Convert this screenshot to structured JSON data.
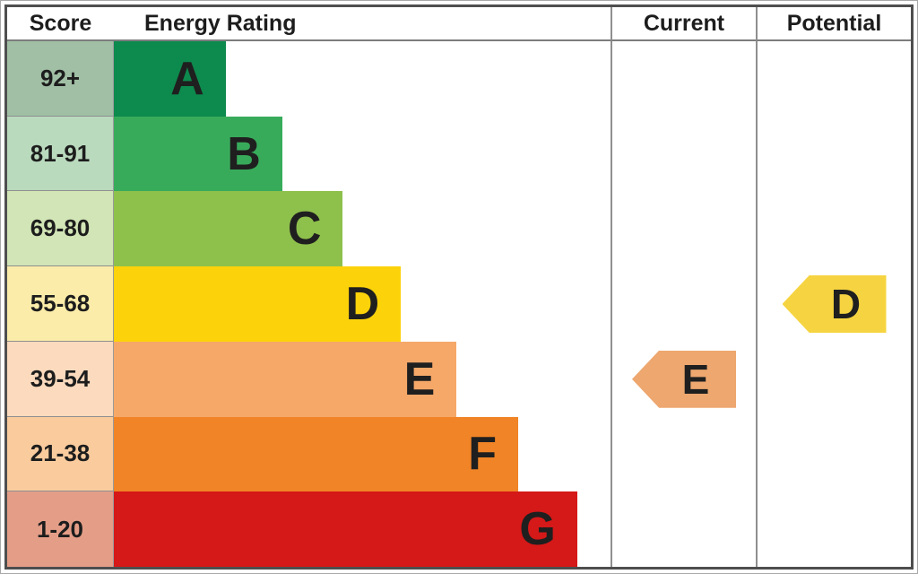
{
  "table": {
    "headers": {
      "score": "Score",
      "rating": "Energy Rating",
      "current": "Current",
      "potential": "Potential"
    },
    "bands": [
      {
        "score": "92+",
        "letter": "A",
        "bar_color": "#0d8a4d",
        "tint": "#a0bfa4",
        "width_pct": 22.5
      },
      {
        "score": "81-91",
        "letter": "B",
        "bar_color": "#38ab5b",
        "tint": "#badabe",
        "width_pct": 33.9
      },
      {
        "score": "69-80",
        "letter": "C",
        "bar_color": "#8ec04c",
        "tint": "#d2e5b6",
        "width_pct": 46.1
      },
      {
        "score": "55-68",
        "letter": "D",
        "bar_color": "#fcd20a",
        "tint": "#fbeca9",
        "width_pct": 57.8
      },
      {
        "score": "39-54",
        "letter": "E",
        "bar_color": "#f6a869",
        "tint": "#fbdabd",
        "width_pct": 69.0
      },
      {
        "score": "21-38",
        "letter": "F",
        "bar_color": "#f08426",
        "tint": "#f9cb9d",
        "width_pct": 81.4
      },
      {
        "score": "1-20",
        "letter": "G",
        "bar_color": "#d51818",
        "tint": "#e49e87",
        "width_pct": 93.3
      }
    ],
    "current": {
      "letter": "E",
      "band": "39-54",
      "color": "#eda76f"
    },
    "potential": {
      "letter": "D",
      "band": "55-68",
      "color": "#f6d441"
    }
  },
  "colors": {
    "outer_border": "#4e4e4e",
    "grid_line": "#8f8f8f",
    "text": "#1d1d1d"
  },
  "chart_data": {
    "type": "bar",
    "title": "Energy Rating (EPC band chart)",
    "columns": [
      "Score",
      "Energy Rating",
      "Current",
      "Potential"
    ],
    "categories": [
      "A",
      "B",
      "C",
      "D",
      "E",
      "F",
      "G"
    ],
    "score_ranges": [
      "92+",
      "81-91",
      "69-80",
      "55-68",
      "39-54",
      "21-38",
      "1-20"
    ],
    "bar_lengths_pct": [
      22.5,
      33.9,
      46.1,
      57.8,
      69.0,
      81.4,
      93.3
    ],
    "markers": {
      "current": "E",
      "potential": "D"
    },
    "legend_position": "none",
    "grid": "column separators and score-row separators only"
  }
}
